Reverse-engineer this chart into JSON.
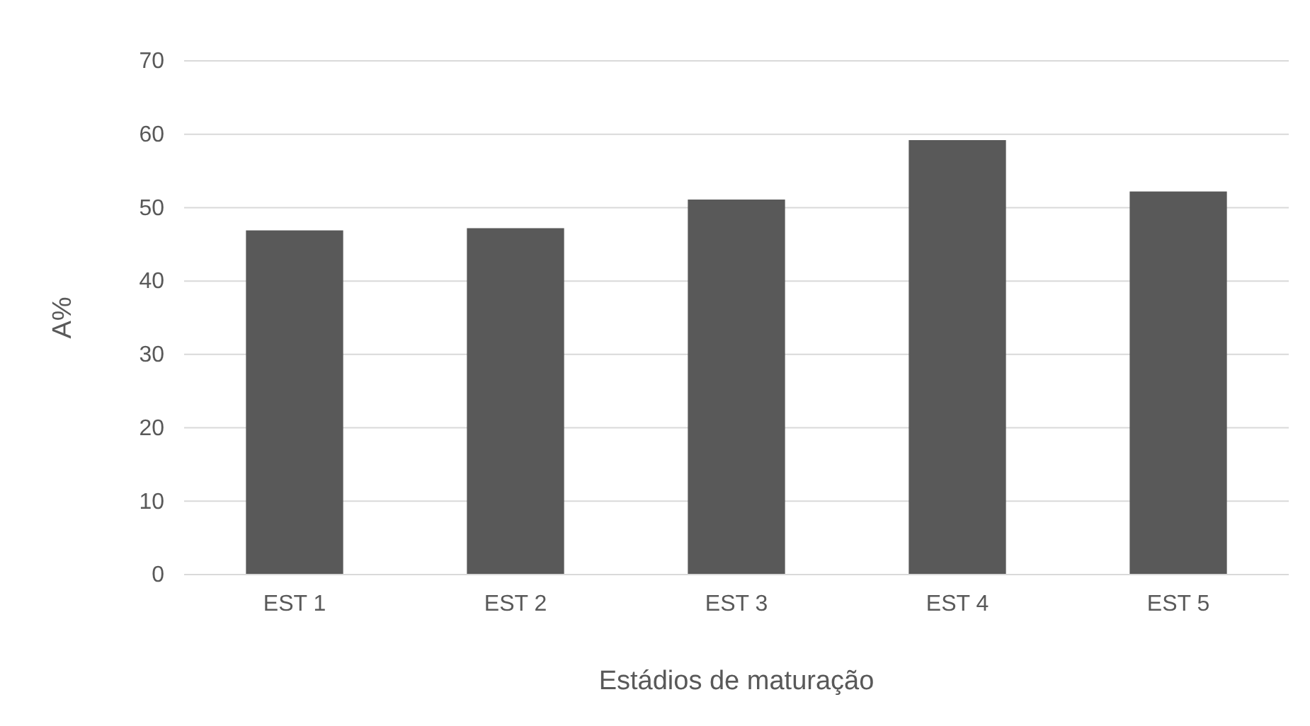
{
  "chart_data": {
    "type": "bar",
    "xlabel": "Estádios de maturação",
    "ylabel": "A%",
    "categories": [
      "EST 1",
      "EST 2",
      "EST 3",
      "EST 4",
      "EST 5"
    ],
    "values": [
      46.9,
      47.2,
      51.1,
      59.2,
      52.2
    ],
    "color": "#595959",
    "ylim": [
      0,
      70
    ],
    "yticks": [
      0,
      10,
      20,
      30,
      40,
      50,
      60,
      70
    ],
    "grid": "y"
  }
}
